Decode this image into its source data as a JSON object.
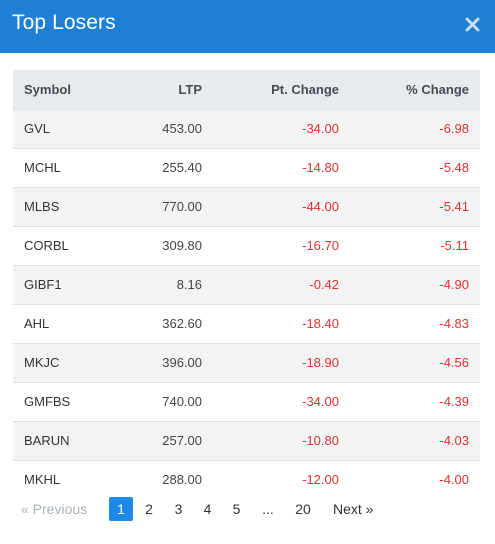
{
  "header": {
    "title": "Top Losers",
    "close_icon": "close-icon"
  },
  "table": {
    "columns": [
      "Symbol",
      "LTP",
      "Pt. Change",
      "% Change"
    ],
    "rows": [
      {
        "symbol": "GVL",
        "ltp": "453.00",
        "pt_change": "-34.00",
        "pct_change": "-6.98"
      },
      {
        "symbol": "MCHL",
        "ltp": "255.40",
        "pt_change": "-14.80",
        "pct_change": "-5.48"
      },
      {
        "symbol": "MLBS",
        "ltp": "770.00",
        "pt_change": "-44.00",
        "pct_change": "-5.41"
      },
      {
        "symbol": "CORBL",
        "ltp": "309.80",
        "pt_change": "-16.70",
        "pct_change": "-5.11"
      },
      {
        "symbol": "GIBF1",
        "ltp": "8.16",
        "pt_change": "-0.42",
        "pct_change": "-4.90"
      },
      {
        "symbol": "AHL",
        "ltp": "362.60",
        "pt_change": "-18.40",
        "pct_change": "-4.83"
      },
      {
        "symbol": "MKJC",
        "ltp": "396.00",
        "pt_change": "-18.90",
        "pct_change": "-4.56"
      },
      {
        "symbol": "GMFBS",
        "ltp": "740.00",
        "pt_change": "-34.00",
        "pct_change": "-4.39"
      },
      {
        "symbol": "BARUN",
        "ltp": "257.00",
        "pt_change": "-10.80",
        "pct_change": "-4.03"
      },
      {
        "symbol": "MKHL",
        "ltp": "288.00",
        "pt_change": "-12.00",
        "pct_change": "-4.00"
      }
    ]
  },
  "pagination": {
    "prev_label": "« Previous",
    "pages": [
      "1",
      "2",
      "3",
      "4",
      "5",
      "...",
      "20"
    ],
    "current_page": "1",
    "next_label": "Next »"
  },
  "colors": {
    "header_bg": "#1e7fd4",
    "negative": "#e03131",
    "active_page": "#1e88e5"
  }
}
